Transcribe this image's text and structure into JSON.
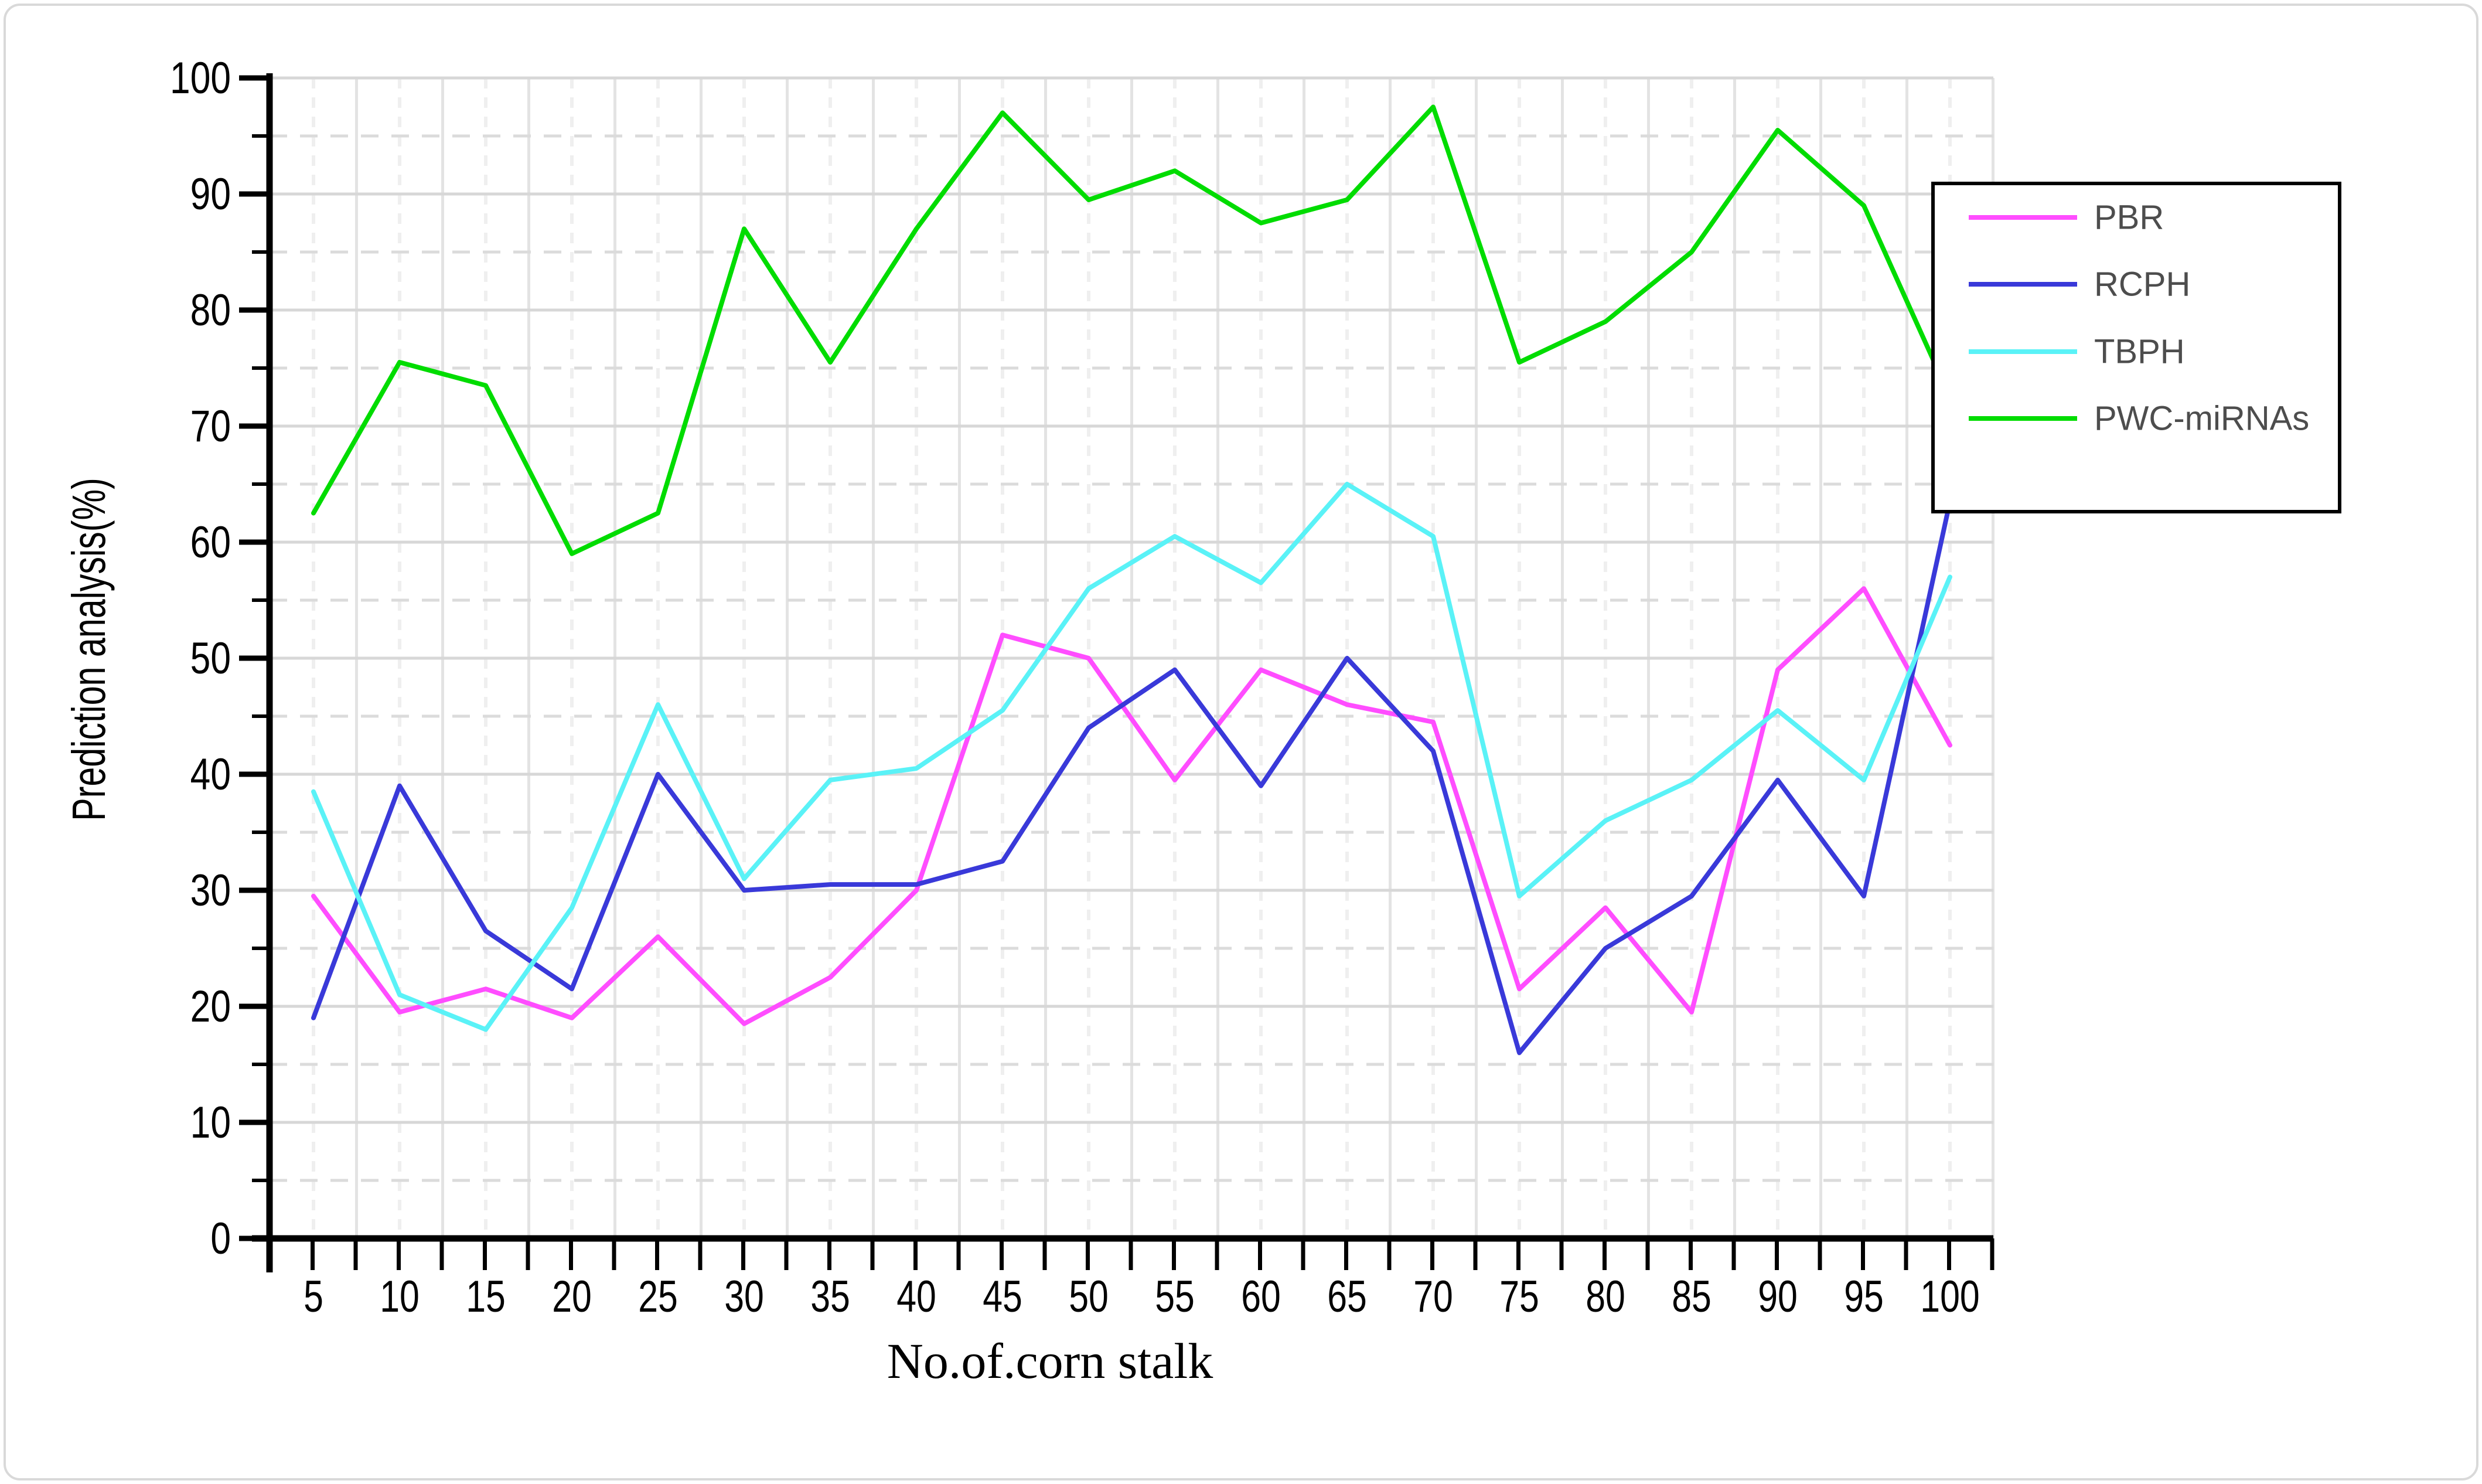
{
  "figure": {
    "background": "#ffffff",
    "border_color": "#d9d9d9"
  },
  "chart_data": {
    "type": "line",
    "title": "",
    "xlabel": "No.of.corn stalk",
    "ylabel": "Prediction analysis(%)",
    "x": [
      5,
      10,
      15,
      20,
      25,
      30,
      35,
      40,
      45,
      50,
      55,
      60,
      65,
      70,
      75,
      80,
      85,
      90,
      95,
      100
    ],
    "series": [
      {
        "name": "PBR",
        "color": "#ff4dff",
        "values": [
          29.5,
          19.5,
          21.5,
          19,
          26,
          18.5,
          22.5,
          30,
          52,
          50,
          39.5,
          49,
          46,
          44.5,
          21.5,
          28.5,
          19.5,
          49,
          56,
          42.5
        ]
      },
      {
        "name": "RCPH",
        "color": "#3939d9",
        "values": [
          19,
          39,
          26.5,
          21.5,
          40,
          30,
          30.5,
          30.5,
          32.5,
          44,
          49,
          39,
          50,
          42,
          16,
          25,
          29.5,
          39.5,
          29.5,
          63.5
        ]
      },
      {
        "name": "TBPH",
        "color": "#5af2f7",
        "values": [
          38.5,
          21,
          18,
          28.5,
          46,
          31,
          39.5,
          40.5,
          45.5,
          56,
          60.5,
          56.5,
          65,
          60.5,
          29.5,
          36,
          39.5,
          45.5,
          39.5,
          57
        ]
      },
      {
        "name": "PWC-miRNAs",
        "color": "#00dc00",
        "values": [
          62.5,
          75.5,
          73.5,
          59,
          62.5,
          87,
          75.5,
          87,
          97,
          89.5,
          92,
          87.5,
          89.5,
          97.5,
          75.5,
          79,
          85,
          95.5,
          89,
          72.5
        ]
      }
    ],
    "ylim": [
      0,
      100
    ],
    "y_major_step": 10,
    "y_minor_step": 5,
    "x_tick_step": 5,
    "grid": true,
    "legend_position": "right-overlay",
    "colors": {
      "axis": "#000000",
      "grid_solid": "#d7d7d7",
      "grid_dashed": "#dbdbdb",
      "grid_v_solid": "#e3e3e3",
      "grid_v_dashed": "#efefef",
      "tick_label": "#000000",
      "legend_text": "#4d4d4d",
      "legend_border": "#000000"
    }
  }
}
